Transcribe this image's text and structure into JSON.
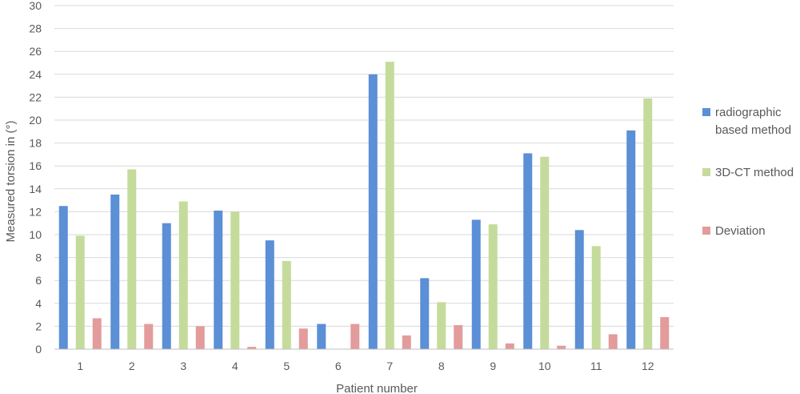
{
  "chart_data": {
    "type": "bar",
    "title": "",
    "xlabel": "Patient number",
    "ylabel": "Measured torsion in (°)",
    "ylim": [
      0,
      30
    ],
    "ytick_step": 2,
    "grid": true,
    "legend_position": "right",
    "categories": [
      "1",
      "2",
      "3",
      "4",
      "5",
      "6",
      "7",
      "8",
      "9",
      "10",
      "11",
      "12"
    ],
    "series": [
      {
        "name": "radiographic based method",
        "legend_lines": [
          "radiographic",
          "based method"
        ],
        "color": "#5b8fd6",
        "values": [
          12.5,
          13.5,
          11.0,
          12.1,
          9.5,
          2.2,
          24.0,
          6.2,
          11.3,
          17.1,
          10.4,
          19.1
        ]
      },
      {
        "name": "3D-CT method",
        "legend_lines": [
          "3D-CT method"
        ],
        "color": "#c5db9c",
        "values": [
          9.9,
          15.7,
          12.9,
          12.0,
          7.7,
          0.0,
          25.1,
          4.1,
          10.9,
          16.8,
          9.0,
          21.9
        ]
      },
      {
        "name": "Deviation",
        "legend_lines": [
          "Deviation"
        ],
        "color": "#e39b9c",
        "values": [
          2.7,
          2.2,
          2.0,
          0.2,
          1.8,
          2.2,
          1.2,
          2.1,
          0.5,
          0.3,
          1.3,
          2.8
        ]
      }
    ]
  }
}
